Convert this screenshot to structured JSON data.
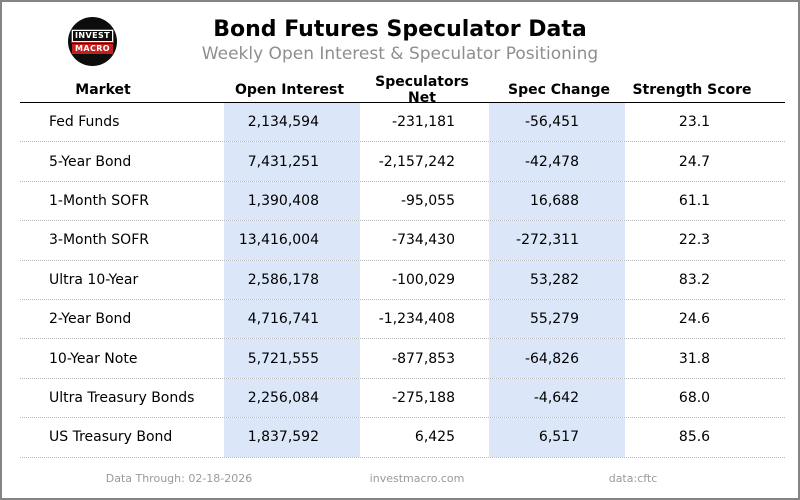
{
  "logo": {
    "line1": "INVEST",
    "line2": "MACRO"
  },
  "chart_data": {
    "type": "table",
    "title": "Bond Futures Speculator Data",
    "subtitle": "Weekly Open Interest & Speculator Positioning",
    "columns": [
      "Market",
      "Open Interest",
      "Speculators Net",
      "Spec Change",
      "Strength Score"
    ],
    "highlighted_columns": [
      "Open Interest",
      "Spec Change"
    ],
    "rows": [
      {
        "market": "Fed Funds",
        "open_interest": "2,134,594",
        "speculators_net": "-231,181",
        "spec_change": "-56,451",
        "strength_score": "23.1"
      },
      {
        "market": "5-Year Bond",
        "open_interest": "7,431,251",
        "speculators_net": "-2,157,242",
        "spec_change": "-42,478",
        "strength_score": "24.7"
      },
      {
        "market": "1-Month SOFR",
        "open_interest": "1,390,408",
        "speculators_net": "-95,055",
        "spec_change": "16,688",
        "strength_score": "61.1"
      },
      {
        "market": "3-Month SOFR",
        "open_interest": "13,416,004",
        "speculators_net": "-734,430",
        "spec_change": "-272,311",
        "strength_score": "22.3"
      },
      {
        "market": "Ultra 10-Year",
        "open_interest": "2,586,178",
        "speculators_net": "-100,029",
        "spec_change": "53,282",
        "strength_score": "83.2"
      },
      {
        "market": "2-Year Bond",
        "open_interest": "4,716,741",
        "speculators_net": "-1,234,408",
        "spec_change": "55,279",
        "strength_score": "24.6"
      },
      {
        "market": "10-Year Note",
        "open_interest": "5,721,555",
        "speculators_net": "-877,853",
        "spec_change": "-64,826",
        "strength_score": "31.8"
      },
      {
        "market": "Ultra Treasury Bonds",
        "open_interest": "2,256,084",
        "speculators_net": "-275,188",
        "spec_change": "-4,642",
        "strength_score": "68.0"
      },
      {
        "market": "US Treasury Bond",
        "open_interest": "1,837,592",
        "speculators_net": "6,425",
        "spec_change": "6,517",
        "strength_score": "85.6"
      }
    ]
  },
  "footer": {
    "data_through": "Data Through: 02-18-2026",
    "website": "investmacro.com",
    "source": "data:cftc"
  },
  "colors": {
    "highlight": "#dbe6f8",
    "logo_red": "#c41f1f",
    "border_gray": "#848484",
    "muted_gray": "#8e8e8e",
    "dotted_gray": "#b8b8b8"
  }
}
